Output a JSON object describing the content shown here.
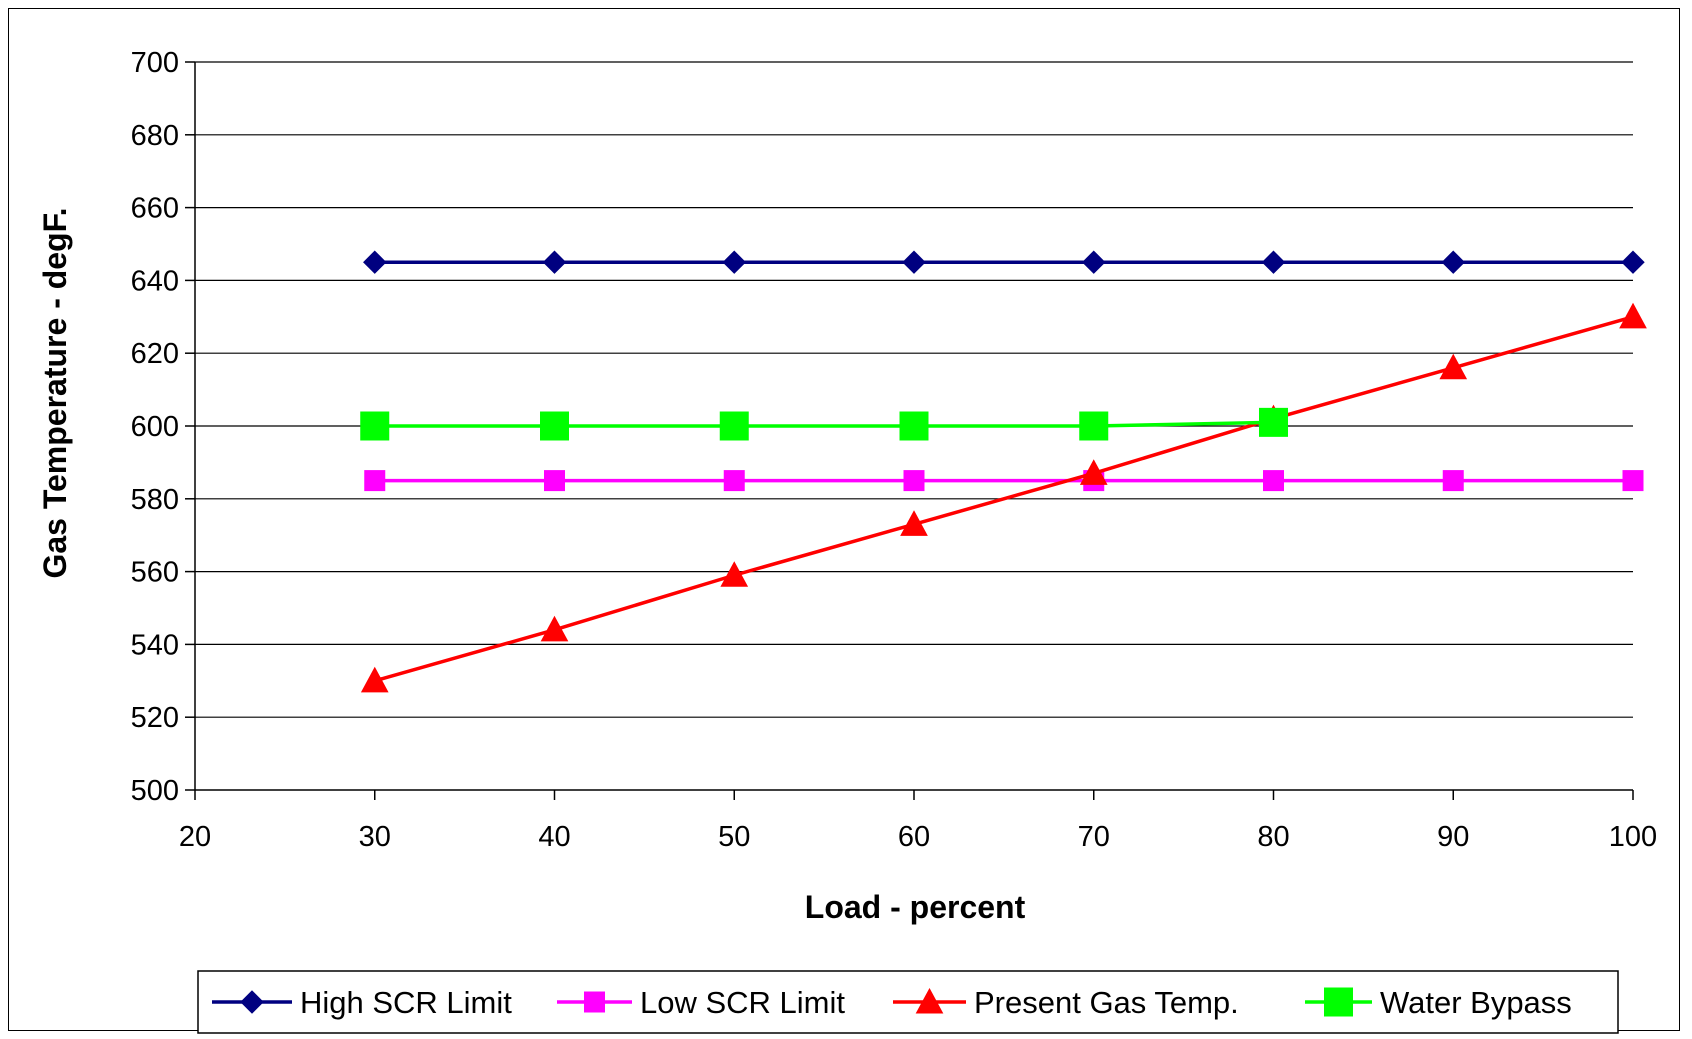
{
  "chart_data": {
    "type": "line",
    "title": "",
    "xlabel": "Load - percent",
    "ylabel": "Gas Temperature - degF.",
    "xlim": [
      20,
      100
    ],
    "ylim": [
      500,
      700
    ],
    "xticks": [
      20,
      30,
      40,
      50,
      60,
      70,
      80,
      90,
      100
    ],
    "yticks": [
      500,
      520,
      540,
      560,
      580,
      600,
      620,
      640,
      660,
      680,
      700
    ],
    "grid": "horizontal",
    "legend_position": "bottom",
    "series": [
      {
        "name": "High SCR Limit",
        "color": "#000080",
        "marker": "diamond",
        "x": [
          30,
          40,
          50,
          60,
          70,
          80,
          90,
          100
        ],
        "y": [
          645,
          645,
          645,
          645,
          645,
          645,
          645,
          645
        ]
      },
      {
        "name": "Low SCR Limit",
        "color": "#FF00FF",
        "marker": "square",
        "x": [
          30,
          40,
          50,
          60,
          70,
          80,
          90,
          100
        ],
        "y": [
          585,
          585,
          585,
          585,
          585,
          585,
          585,
          585
        ]
      },
      {
        "name": "Present Gas Temp.",
        "color": "#FF0000",
        "marker": "triangle",
        "x": [
          30,
          40,
          50,
          60,
          70,
          80,
          90,
          100
        ],
        "y": [
          530,
          544,
          559,
          573,
          587,
          602,
          616,
          630
        ]
      },
      {
        "name": "Water Bypass",
        "color": "#00FF00",
        "marker": "square-large",
        "x": [
          30,
          40,
          50,
          60,
          70,
          80
        ],
        "y": [
          600,
          600,
          600,
          600,
          600,
          601
        ]
      }
    ]
  }
}
